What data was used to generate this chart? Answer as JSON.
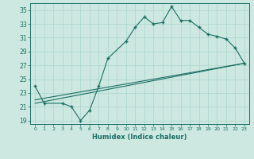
{
  "xlabel": "Humidex (Indice chaleur)",
  "background_color": "#cce8e0",
  "grid_color": "#aad4cc",
  "line_color": "#1a6e64",
  "xlim": [
    -0.5,
    23.5
  ],
  "ylim": [
    18.5,
    36
  ],
  "yticks": [
    19,
    21,
    23,
    25,
    27,
    29,
    31,
    33,
    35
  ],
  "xticks": [
    0,
    1,
    2,
    3,
    4,
    5,
    6,
    7,
    8,
    9,
    10,
    11,
    12,
    13,
    14,
    15,
    16,
    17,
    18,
    19,
    20,
    21,
    22,
    23
  ],
  "line1_x": [
    0,
    1,
    3,
    4,
    5,
    6,
    7,
    8,
    10,
    11,
    12,
    13,
    14,
    15,
    16,
    17,
    18,
    19,
    20,
    21,
    22,
    23
  ],
  "line1_y": [
    24,
    21.5,
    21.5,
    21,
    19,
    20.5,
    24,
    28,
    30.5,
    32.5,
    34,
    33,
    33.2,
    35.5,
    33.5,
    33.5,
    32.5,
    31.5,
    31.2,
    30.8,
    29.5,
    27.3
  ],
  "line2_x": [
    0,
    23
  ],
  "line2_y": [
    22,
    27.3
  ],
  "line3_x": [
    0,
    23
  ],
  "line3_y": [
    21.5,
    27.3
  ]
}
